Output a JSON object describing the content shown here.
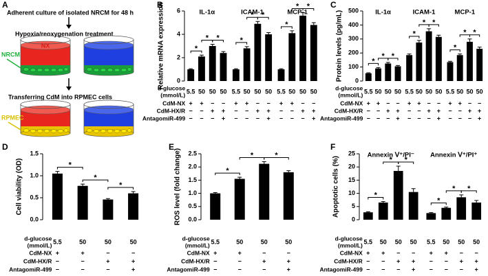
{
  "panel_a": {
    "label": "A",
    "step1": "Adherent culture of isolated NRCM for 48 h",
    "step2": "Hypoxia/reoxygenation treatment",
    "dish_label": "NX",
    "cell1": "NRCM",
    "step3": "Transferring CdM into RPMEC cells",
    "cell2": "RPMEC"
  },
  "chart_data": [
    {
      "type": "bar",
      "panel": "B",
      "ylabel": "Relative mRNA expression",
      "color": "#000000",
      "ylim": [
        0,
        6
      ],
      "yticks": [
        0,
        2,
        4,
        6
      ],
      "groups": [
        {
          "name": "IL-1α",
          "values": [
            1.0,
            2.1,
            3.0,
            2.4
          ],
          "errors": [
            0.05,
            0.12,
            0.15,
            0.12
          ],
          "significance": [
            "*",
            "*",
            "*"
          ]
        },
        {
          "name": "ICAM-1",
          "values": [
            1.0,
            2.8,
            4.9,
            4.0
          ],
          "errors": [
            0.05,
            0.15,
            0.2,
            0.15
          ],
          "significance": [
            "*",
            "*",
            "*"
          ]
        },
        {
          "name": "MCP-1",
          "values": [
            1.0,
            4.1,
            5.6,
            4.8
          ],
          "errors": [
            0.05,
            0.2,
            0.25,
            0.2
          ],
          "significance": [
            "*",
            "*",
            "*"
          ]
        }
      ],
      "conditions": {
        "glucose_label": "d-glucose",
        "glucose_unit": "(mmol/L)",
        "glucose": [
          "5.5",
          "50",
          "50",
          "50"
        ],
        "rows": [
          {
            "label": "CdM-NX",
            "marks": [
              "+",
              "+",
              "−",
              "−"
            ]
          },
          {
            "label": "CdM-HX/R",
            "marks": [
              "−",
              "−",
              "+",
              "+"
            ]
          },
          {
            "label": "AntagomiR-499",
            "marks": [
              "−",
              "−",
              "−",
              "+"
            ]
          }
        ]
      }
    },
    {
      "type": "bar",
      "panel": "C",
      "ylabel": "Protein levels (pg/mL)",
      "color": "#000000",
      "ylim": [
        0,
        500
      ],
      "yticks": [
        0,
        100,
        200,
        300,
        400,
        500
      ],
      "groups": [
        {
          "name": "IL-1α",
          "values": [
            55,
            90,
            125,
            105
          ],
          "errors": [
            4,
            6,
            8,
            6
          ],
          "significance": [
            "*",
            "*",
            "*"
          ]
        },
        {
          "name": "ICAM-1",
          "values": [
            185,
            275,
            355,
            315
          ],
          "errors": [
            8,
            15,
            18,
            12
          ],
          "significance": [
            "*",
            "*",
            "*"
          ]
        },
        {
          "name": "MCP-1",
          "values": [
            135,
            185,
            280,
            230
          ],
          "errors": [
            6,
            8,
            20,
            12
          ],
          "significance": [
            "*",
            "*",
            "*"
          ]
        }
      ],
      "conditions": {
        "glucose_label": "d-glucose",
        "glucose_unit": "(mmol/L)",
        "glucose": [
          "5.5",
          "50",
          "50",
          "50"
        ],
        "rows": [
          {
            "label": "CdM-NX",
            "marks": [
              "+",
              "+",
              "−",
              "−"
            ]
          },
          {
            "label": "CdM-HX/R",
            "marks": [
              "−",
              "−",
              "+",
              "+"
            ]
          },
          {
            "label": "AntagomiR-499",
            "marks": [
              "−",
              "−",
              "−",
              "+"
            ]
          }
        ]
      }
    },
    {
      "type": "bar",
      "panel": "D",
      "ylabel": "Cell viability (OD)",
      "color": "#000000",
      "ylim": [
        0,
        1.5
      ],
      "yticks": [
        {
          "value": 0,
          "label": "0.0"
        },
        0.5,
        {
          "value": 1,
          "label": "1.0"
        },
        1.5
      ],
      "groups": [
        {
          "values": [
            1.05,
            0.77,
            0.46,
            0.6
          ],
          "errors": [
            0.05,
            0.04,
            0.02,
            0.04
          ],
          "significance": [
            "*",
            "*",
            "*"
          ]
        }
      ],
      "conditions": {
        "glucose_label": "d-glucose",
        "glucose_unit": "(mmol/L)",
        "glucose": [
          "5.5",
          "50",
          "50",
          "50"
        ],
        "rows": [
          {
            "label": "CdM-NX",
            "marks": [
              "+",
              "+",
              "−",
              "−"
            ]
          },
          {
            "label": "CdM-HX/R",
            "marks": [
              "−",
              "−",
              "+",
              "+"
            ]
          },
          {
            "label": "AntagomiR-499",
            "marks": [
              "−",
              "−",
              "−",
              "+"
            ]
          }
        ]
      }
    },
    {
      "type": "bar",
      "panel": "E",
      "ylabel": "ROS level (fold change)",
      "color": "#000000",
      "ylim": [
        0,
        2.5
      ],
      "yticks": [
        {
          "value": 0,
          "label": "0.0"
        },
        0.5,
        {
          "value": 1,
          "label": "1.0"
        },
        1.5,
        {
          "value": 2,
          "label": "2.0"
        },
        2.5
      ],
      "groups": [
        {
          "values": [
            1.0,
            1.55,
            2.12,
            1.8
          ],
          "errors": [
            0.03,
            0.06,
            0.08,
            0.06
          ],
          "significance": [
            "*",
            "*",
            "*"
          ]
        }
      ],
      "conditions": {
        "glucose_label": "d-glucose",
        "glucose_unit": "(mmol/L)",
        "glucose": [
          "5.5",
          "50",
          "50",
          "50"
        ],
        "rows": [
          {
            "label": "CdM-NX",
            "marks": [
              "+",
              "+",
              "−",
              "−"
            ]
          },
          {
            "label": "CdM-HX/R",
            "marks": [
              "−",
              "−",
              "+",
              "+"
            ]
          },
          {
            "label": "AntagomiR-499",
            "marks": [
              "−",
              "−",
              "−",
              "+"
            ]
          }
        ]
      }
    },
    {
      "type": "bar",
      "panel": "F",
      "ylabel": "Apoptotic cells (%)",
      "color": "#000000",
      "ylim": [
        0,
        25
      ],
      "yticks": [
        0,
        5,
        10,
        15,
        20,
        25
      ],
      "groups": [
        {
          "name": "Annexin Ⅴ⁺/PI⁻",
          "values": [
            2.8,
            6.5,
            18.5,
            10.5
          ],
          "errors": [
            0.2,
            0.4,
            1.8,
            1.3
          ],
          "significance": [
            "*",
            "*",
            "*"
          ]
        },
        {
          "name": "Annexin Ⅴ⁺/PI⁺",
          "values": [
            2.5,
            4.5,
            8.5,
            6.5
          ],
          "errors": [
            0.2,
            0.3,
            0.9,
            0.8
          ],
          "significance": [
            "*",
            "*",
            "*"
          ]
        }
      ],
      "conditions": {
        "glucose_label": "d-glucose",
        "glucose_unit": "(mmol/L)",
        "glucose": [
          "5.5",
          "50",
          "50",
          "50"
        ],
        "rows": [
          {
            "label": "CdM-NX",
            "marks": [
              "+",
              "+",
              "−",
              "−"
            ]
          },
          {
            "label": "CdM-HX/R",
            "marks": [
              "−",
              "−",
              "+",
              "+"
            ]
          },
          {
            "label": "AntagomiR-499",
            "marks": [
              "−",
              "−",
              "−",
              "+"
            ]
          }
        ]
      }
    }
  ]
}
